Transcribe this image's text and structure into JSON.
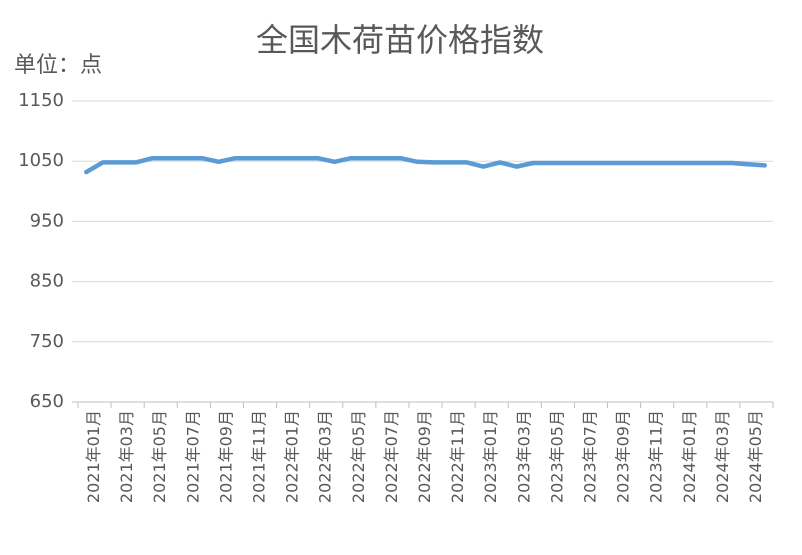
{
  "chart_data": {
    "type": "line",
    "title": "全国木荷苗价格指数",
    "y_label": "单位：点",
    "categories": [
      "2021年01月",
      null,
      "2021年03月",
      null,
      "2021年05月",
      null,
      "2021年07月",
      null,
      "2021年09月",
      null,
      "2021年11月",
      null,
      "2022年01月",
      null,
      "2022年03月",
      null,
      "2022年05月",
      null,
      "2022年07月",
      null,
      "2022年09月",
      null,
      "2022年11月",
      null,
      "2023年01月",
      null,
      "2023年03月",
      null,
      "2023年05月",
      null,
      "2023年07月",
      null,
      "2023年09月",
      null,
      "2023年11月",
      null,
      "2024年01月",
      null,
      "2024年03月",
      null,
      "2024年05月",
      null
    ],
    "series": [
      {
        "name": "全国木荷苗价格指数",
        "color": "#5b9bd5",
        "values": [
          1032,
          1048,
          1048,
          1048,
          1055,
          1055,
          1055,
          1055,
          1049,
          1055,
          1055,
          1055,
          1055,
          1055,
          1055,
          1049,
          1055,
          1055,
          1055,
          1055,
          1049,
          1048,
          1048,
          1048,
          1041,
          1048,
          1041,
          1047,
          1047,
          1047,
          1047,
          1047,
          1047,
          1047,
          1047,
          1047,
          1047,
          1047,
          1047,
          1047,
          1045,
          1043
        ]
      }
    ],
    "ylim": [
      650,
      1150
    ],
    "yticks": [
      650,
      750,
      850,
      950,
      1050,
      1150
    ],
    "grid": true
  }
}
